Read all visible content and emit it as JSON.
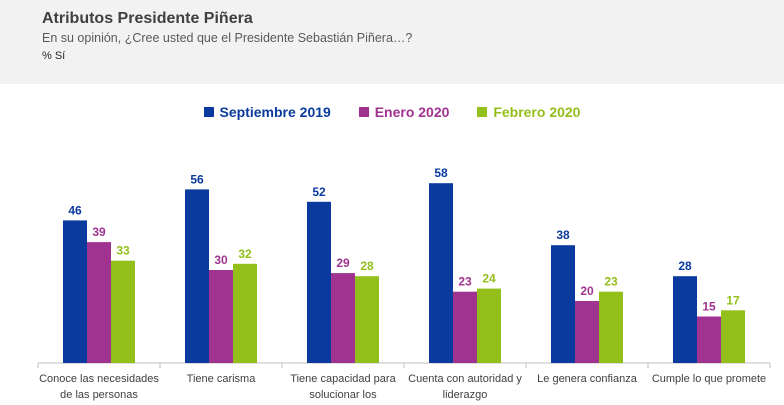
{
  "header": {
    "title": "Atributos Presidente Piñera",
    "subtitle": "En su opinión, ¿Cree usted que el Presidente Sebastián Piñera…?",
    "unit": "% Sí"
  },
  "chart_data": {
    "type": "bar",
    "title": "Atributos Presidente Piñera",
    "ylabel": "% Sí",
    "ylim": [
      0,
      60
    ],
    "grid": false,
    "legend_position": "top-center",
    "categories": [
      "Conoce las necesidades de las personas",
      "Tiene carisma",
      "Tiene capacidad para solucionar los",
      "Cuenta con autoridad y liderazgo",
      "Le genera confianza",
      "Cumple lo que promete"
    ],
    "series": [
      {
        "name": "Septiembre 2019",
        "color": "#0a3a9e",
        "values": [
          46,
          56,
          52,
          58,
          38,
          28
        ]
      },
      {
        "name": "Enero 2020",
        "color": "#a0338f",
        "values": [
          39,
          30,
          29,
          23,
          20,
          15
        ]
      },
      {
        "name": "Febrero 2020",
        "color": "#92bf1a",
        "values": [
          33,
          32,
          28,
          24,
          23,
          17
        ]
      }
    ]
  }
}
